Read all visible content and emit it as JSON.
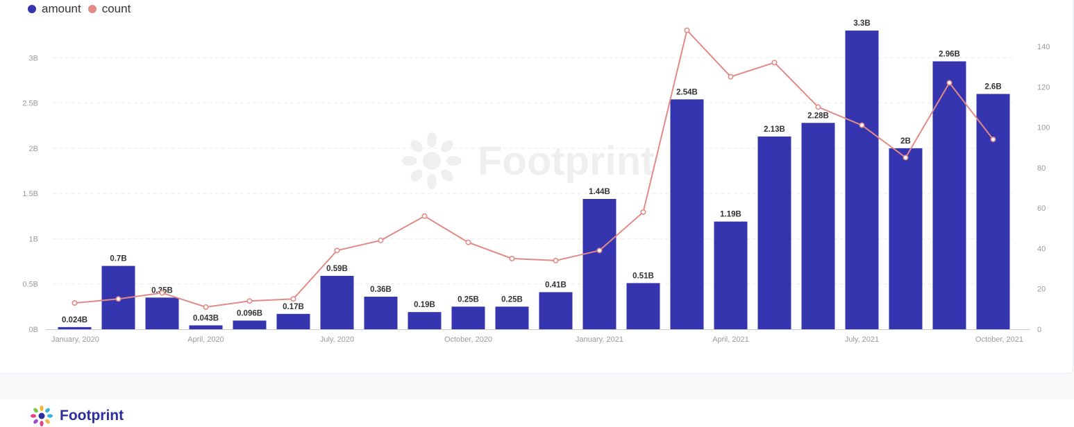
{
  "legend": [
    {
      "label": "amount",
      "color": "#3535b0"
    },
    {
      "label": "count",
      "color": "#e38a86"
    }
  ],
  "watermark": {
    "text": "Footprint",
    "icon": "footprint-logo-icon"
  },
  "footer": {
    "brand": "Footprint",
    "icon": "footprint-logo-icon"
  },
  "chart_data": {
    "type": "bar",
    "title": "",
    "xlabel": "",
    "ylabel": "",
    "categories": [
      "2020-01",
      "2020-02",
      "2020-03",
      "2020-04",
      "2020-05",
      "2020-06",
      "2020-07",
      "2020-08",
      "2020-09",
      "2020-10",
      "2020-11",
      "2020-12",
      "2021-01",
      "2021-02",
      "2021-03",
      "2021-04",
      "2021-05",
      "2021-06",
      "2021-07",
      "2021-08",
      "2021-09",
      "2021-10"
    ],
    "x_tick_labels": [
      {
        "index": 0,
        "label": "January, 2020"
      },
      {
        "index": 3,
        "label": "April, 2020"
      },
      {
        "index": 6,
        "label": "July, 2020"
      },
      {
        "index": 9,
        "label": "October, 2020"
      },
      {
        "index": 12,
        "label": "January, 2021"
      },
      {
        "index": 15,
        "label": "April, 2021"
      },
      {
        "index": 18,
        "label": "July, 2021"
      },
      {
        "index": 21,
        "label": "October, 2021"
      }
    ],
    "series": [
      {
        "name": "amount",
        "type": "bar",
        "axis": "left",
        "color": "#3535b0",
        "values": [
          0.024,
          0.7,
          0.35,
          0.043,
          0.096,
          0.17,
          0.59,
          0.36,
          0.19,
          0.25,
          0.25,
          0.41,
          1.44,
          0.51,
          2.54,
          1.19,
          2.13,
          2.28,
          3.3,
          2,
          2.96,
          2.6
        ],
        "labels": [
          "0.024B",
          "0.7B",
          "0.35B",
          "0.043B",
          "0.096B",
          "0.17B",
          "0.59B",
          "0.36B",
          "0.19B",
          "0.25B",
          "0.25B",
          "0.41B",
          "1.44B",
          "0.51B",
          "2.54B",
          "1.19B",
          "2.13B",
          "2.28B",
          "3.3B",
          "2B",
          "2.96B",
          "2.6B"
        ]
      },
      {
        "name": "count",
        "type": "line",
        "axis": "right",
        "color": "#e38a86",
        "values": [
          13,
          15,
          18,
          11,
          14,
          15,
          39,
          44,
          56,
          43,
          35,
          34,
          39,
          58,
          148,
          125,
          132,
          110,
          101,
          85,
          122,
          94
        ]
      }
    ],
    "y_left": {
      "min": 0,
      "max": 3.5,
      "ticks": [
        0,
        0.5,
        1,
        1.5,
        2,
        2.5,
        3
      ],
      "tick_labels": [
        "0B",
        "0.5B",
        "1B",
        "1.5B",
        "2B",
        "2.5B",
        "3B"
      ]
    },
    "y_right": {
      "min": 0,
      "max": 140,
      "ticks": [
        0,
        20,
        40,
        60,
        80,
        100,
        120,
        140
      ],
      "tick_labels": [
        "0",
        "20",
        "40",
        "60",
        "80",
        "100",
        "120",
        "140"
      ]
    },
    "grid": true,
    "legend_position": "top-left"
  }
}
